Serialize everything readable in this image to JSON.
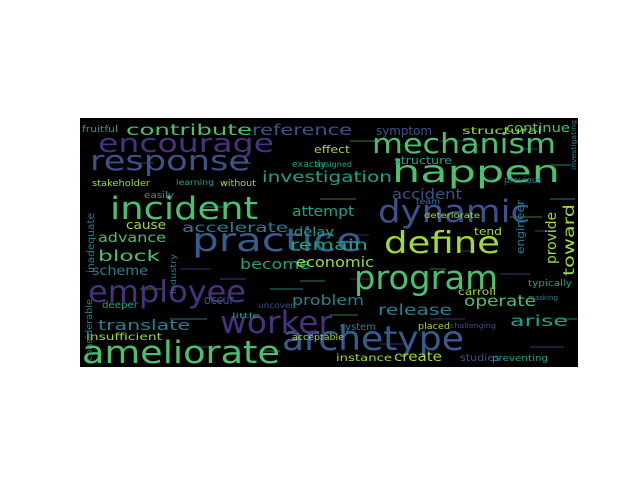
{
  "background": "#000000",
  "palette": {
    "purple": "#46327e",
    "indigo": "#3b528b",
    "blue": "#365c8d",
    "teal": "#277f8e",
    "green": "#1fa187",
    "lightgreen": "#4ac16d",
    "lime": "#a0da39",
    "yellow": "#d0e11c"
  },
  "words": [
    {
      "text": "ameliorate",
      "color": "lightgreen"
    },
    {
      "text": "archetype",
      "color": "blue"
    },
    {
      "text": "employee",
      "color": "purple"
    },
    {
      "text": "worker",
      "color": "purple"
    },
    {
      "text": "program",
      "color": "lightgreen"
    },
    {
      "text": "practice",
      "color": "blue"
    },
    {
      "text": "define",
      "color": "lime"
    },
    {
      "text": "dynamic",
      "color": "indigo"
    },
    {
      "text": "incident",
      "color": "lightgreen"
    },
    {
      "text": "response",
      "color": "indigo"
    },
    {
      "text": "encourage",
      "color": "purple"
    },
    {
      "text": "mechanism",
      "color": "lightgreen"
    },
    {
      "text": "happen",
      "color": "lightgreen"
    },
    {
      "text": "contribute",
      "color": "lightgreen"
    },
    {
      "text": "reference",
      "color": "indigo"
    },
    {
      "text": "investigation",
      "color": "green"
    },
    {
      "text": "accelerate",
      "color": "teal"
    },
    {
      "text": "advance",
      "color": "lightgreen"
    },
    {
      "text": "block",
      "color": "lightgreen"
    },
    {
      "text": "scheme",
      "color": "teal"
    },
    {
      "text": "translate",
      "color": "teal"
    },
    {
      "text": "become",
      "color": "green"
    },
    {
      "text": "economic",
      "color": "lime"
    },
    {
      "text": "remain",
      "color": "green"
    },
    {
      "text": "attempt",
      "color": "green"
    },
    {
      "text": "problem",
      "color": "teal"
    },
    {
      "text": "release",
      "color": "teal"
    },
    {
      "text": "operate",
      "color": "lightgreen"
    },
    {
      "text": "arise",
      "color": "green"
    },
    {
      "text": "accident",
      "color": "indigo"
    },
    {
      "text": "toward",
      "color": "lime"
    },
    {
      "text": "provide",
      "color": "lime"
    },
    {
      "text": "symptom",
      "color": "indigo"
    },
    {
      "text": "structural",
      "color": "lime"
    },
    {
      "text": "continue",
      "color": "lightgreen"
    },
    {
      "text": "structure",
      "color": "green"
    },
    {
      "text": "cause",
      "color": "lime"
    },
    {
      "text": "occur",
      "color": "indigo"
    },
    {
      "text": "delay",
      "color": "green"
    },
    {
      "text": "create",
      "color": "lime"
    },
    {
      "text": "instance",
      "color": "lime"
    },
    {
      "text": "system",
      "color": "teal"
    },
    {
      "text": "tend",
      "color": "lime"
    },
    {
      "text": "engineer",
      "color": "teal"
    },
    {
      "text": "carroll",
      "color": "lime"
    },
    {
      "text": "typically",
      "color": "green"
    },
    {
      "text": "deeper",
      "color": "green"
    },
    {
      "text": "insufficient",
      "color": "lime"
    },
    {
      "text": "inadequate",
      "color": "teal"
    },
    {
      "text": "considerable",
      "color": "teal"
    },
    {
      "text": "acceptable",
      "color": "lime"
    },
    {
      "text": "studies",
      "color": "indigo"
    },
    {
      "text": "preventing",
      "color": "green"
    },
    {
      "text": "effect",
      "color": "lime"
    },
    {
      "text": "stakeholder",
      "color": "lime"
    },
    {
      "text": "fruitful",
      "color": "green"
    },
    {
      "text": "exactly",
      "color": "green"
    },
    {
      "text": "without",
      "color": "lime"
    },
    {
      "text": "learning",
      "color": "green"
    },
    {
      "text": "assigned",
      "color": "green"
    },
    {
      "text": "industry",
      "color": "teal"
    },
    {
      "text": "team",
      "color": "teal"
    },
    {
      "text": "previous",
      "color": "teal"
    },
    {
      "text": "deteriorate",
      "color": "lime"
    },
    {
      "text": "placed",
      "color": "lime"
    },
    {
      "text": "easily",
      "color": "green"
    },
    {
      "text": "uncover",
      "color": "indigo"
    },
    {
      "text": "little",
      "color": "green"
    },
    {
      "text": "challenging",
      "color": "indigo"
    },
    {
      "text": "investigating",
      "color": "teal"
    },
    {
      "text": "masking",
      "color": "teal"
    }
  ]
}
